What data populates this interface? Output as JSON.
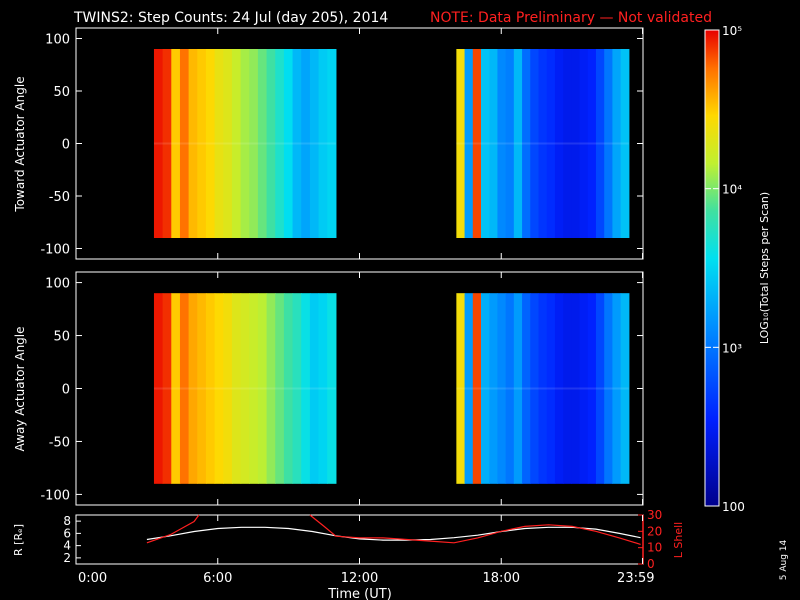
{
  "title": {
    "main": "TWINS2: Step Counts: 24 Jul (day 205), 2014",
    "note": "NOTE: Data Preliminary — Not validated",
    "note_color": "#ff2020"
  },
  "side_date": "5 Aug 14",
  "chart_data": [
    {
      "type": "heatmap",
      "ylabel": "Toward Actuator Angle",
      "ylim": [
        -110,
        110
      ],
      "yticks": [
        -100,
        -50,
        0,
        50,
        100
      ],
      "y_extent": [
        -90,
        90
      ],
      "x_unit": "hours UT",
      "segments": [
        {
          "x_start": 3.3,
          "x_end": 11.0,
          "log_counts": [
            4.95,
            4.9,
            4.5,
            4.75,
            4.55,
            4.5,
            4.45,
            4.35,
            4.3,
            4.2,
            4.1,
            4.05,
            3.95,
            3.85,
            3.7,
            3.55,
            3.35,
            3.25,
            3.35,
            3.45,
            3.5
          ]
        },
        {
          "x_start": 16.1,
          "x_end": 23.4,
          "log_counts": [
            4.4,
            3.2,
            4.85,
            3.4,
            3.35,
            3.1,
            3.05,
            3.35,
            2.95,
            2.75,
            2.65,
            2.6,
            2.5,
            2.45,
            2.45,
            2.5,
            2.55,
            2.75,
            3.0,
            3.25,
            3.4
          ]
        }
      ]
    },
    {
      "type": "heatmap",
      "ylabel": "Away Actuator Angle",
      "ylim": [
        -110,
        110
      ],
      "yticks": [
        -100,
        -50,
        0,
        50,
        100
      ],
      "y_extent": [
        -90,
        90
      ],
      "x_unit": "hours UT",
      "segments": [
        {
          "x_start": 3.3,
          "x_end": 11.0,
          "log_counts": [
            4.95,
            4.9,
            4.5,
            4.75,
            4.6,
            4.55,
            4.5,
            4.45,
            4.4,
            4.3,
            4.25,
            4.2,
            4.15,
            4.05,
            3.95,
            3.85,
            3.75,
            3.6,
            3.45,
            3.5,
            3.6
          ]
        },
        {
          "x_start": 16.1,
          "x_end": 23.4,
          "log_counts": [
            4.4,
            3.2,
            4.85,
            3.3,
            3.2,
            3.1,
            3.0,
            3.2,
            2.9,
            2.75,
            2.65,
            2.6,
            2.5,
            2.45,
            2.45,
            2.5,
            2.55,
            2.75,
            3.0,
            3.2,
            3.35
          ]
        }
      ]
    },
    {
      "type": "line",
      "xlabel": "Time (UT)",
      "xticks": [
        {
          "value": 0,
          "label": "0:00"
        },
        {
          "value": 6,
          "label": "6:00"
        },
        {
          "value": 12,
          "label": "12:00"
        },
        {
          "value": 18,
          "label": "18:00"
        },
        {
          "value": 23.98,
          "label": "23:59"
        }
      ],
      "xlim": [
        0,
        24
      ],
      "ylabel_left": "R [Rₑ]",
      "ylim_left": [
        1,
        9
      ],
      "yticks_left": [
        2,
        4,
        6,
        8
      ],
      "ylabel_right": "L Shell",
      "ylim_right": [
        0,
        30
      ],
      "yticks_right": [
        0,
        10,
        20,
        30
      ],
      "series": [
        {
          "axis": "left",
          "color": "#ffffff",
          "x": [
            3.0,
            4.0,
            5.0,
            6.0,
            7.0,
            8.0,
            9.0,
            10.0,
            11.0,
            12.0,
            13.0,
            14.0,
            15.0,
            16.0,
            17.0,
            18.0,
            19.0,
            20.0,
            21.0,
            22.0,
            23.0,
            23.9
          ],
          "y": [
            5.0,
            5.6,
            6.3,
            6.8,
            7.0,
            7.0,
            6.8,
            6.3,
            5.6,
            5.1,
            4.9,
            4.9,
            5.0,
            5.3,
            5.7,
            6.3,
            6.8,
            7.0,
            7.0,
            6.7,
            6.0,
            5.3
          ]
        },
        {
          "axis": "right",
          "color": "#ff2020",
          "x": [
            3.0,
            4.0,
            5.0,
            5.2
          ],
          "y": [
            13,
            18,
            26,
            30
          ]
        },
        {
          "axis": "right",
          "color": "#ff2020",
          "x": [
            9.9,
            10.5,
            11.0,
            12.0,
            13.0,
            14.0,
            15.0,
            16.0,
            17.0,
            18.0,
            19.0,
            20.0,
            21.0,
            22.0,
            23.0,
            23.9
          ],
          "y": [
            30,
            23,
            17,
            16,
            16,
            15,
            14,
            13,
            16,
            20,
            23,
            24,
            23,
            20,
            16,
            12
          ]
        }
      ]
    }
  ],
  "colorbar": {
    "label": "LOG₁₀(Total Steps per Scan)",
    "min_log": 2.0,
    "max_log": 5.0,
    "ticks": [
      {
        "log": 5,
        "label": "10⁵"
      },
      {
        "log": 4,
        "label": "10⁴"
      },
      {
        "log": 3,
        "label": "10³"
      },
      {
        "log": 2,
        "label": "100"
      }
    ]
  }
}
